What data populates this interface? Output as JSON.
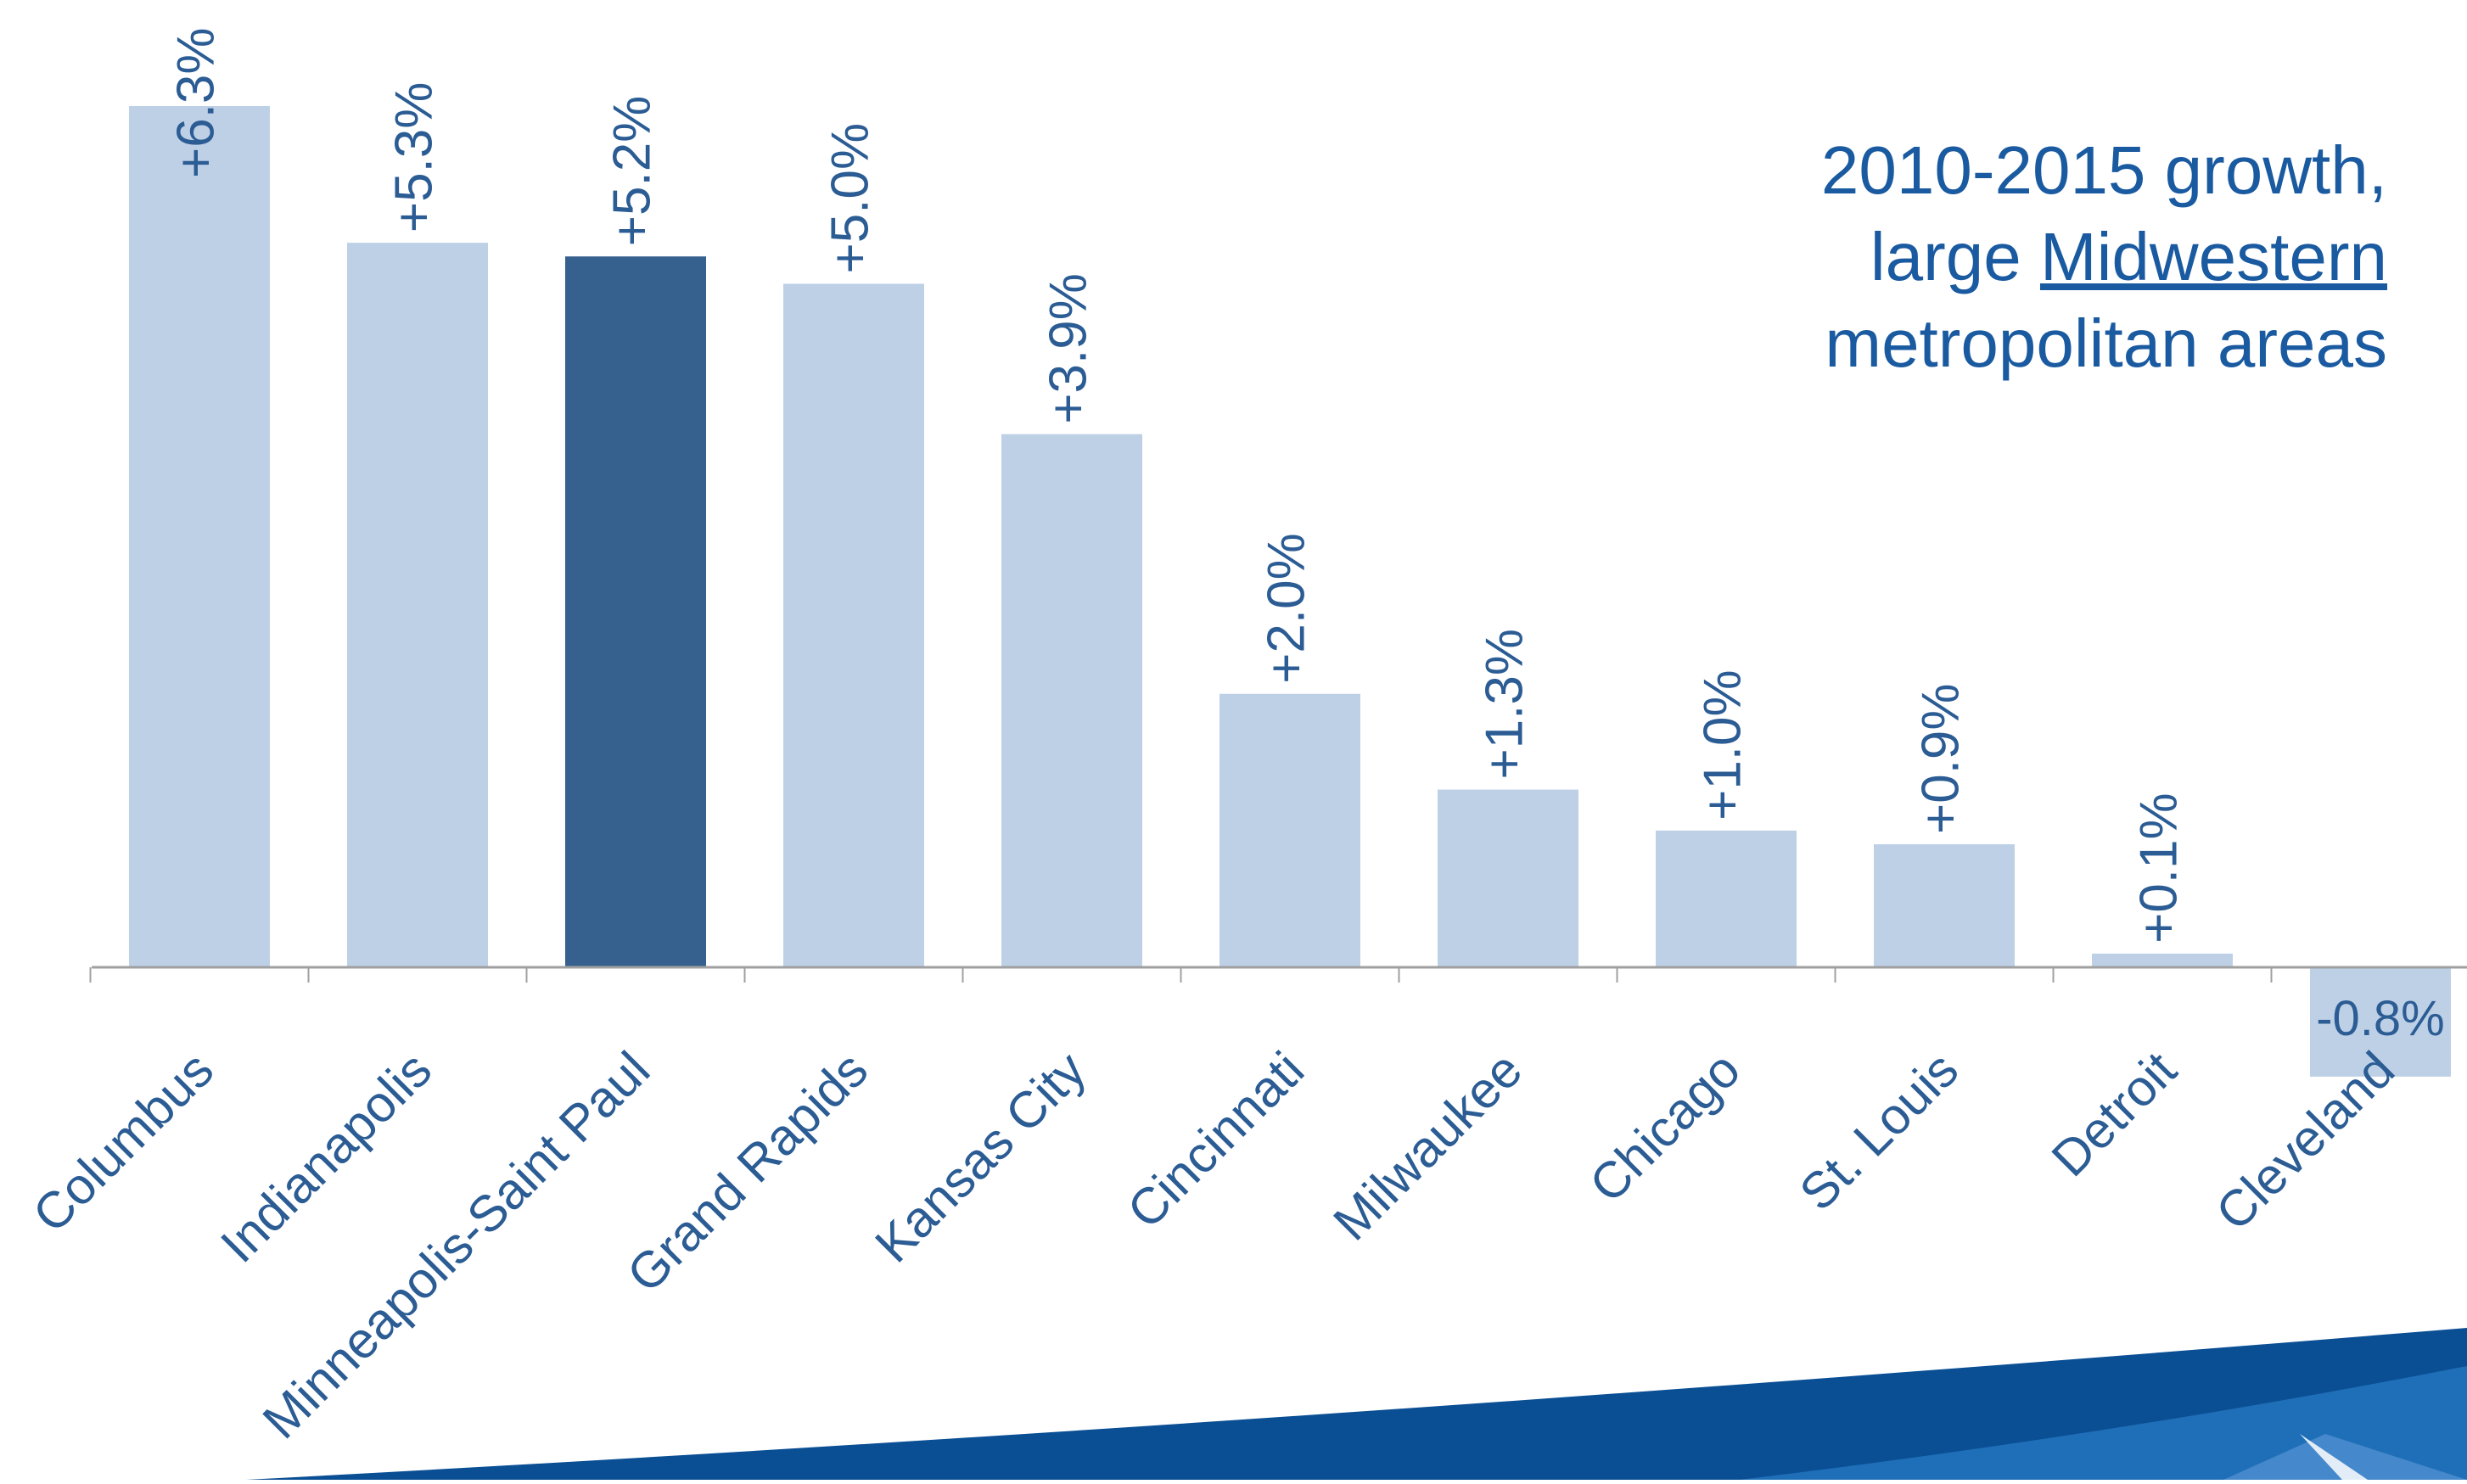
{
  "title": {
    "line1": "2010-2015 growth,",
    "line2_prefix": "large ",
    "line2_emphasis": "Midwestern",
    "line3": "metropolitan areas"
  },
  "colors": {
    "bar": "#bdd0e6",
    "highlight_bar": "#36618f",
    "label_text": "#2b5c94",
    "axis": "#a0a0a0",
    "title": "#1a5aa0",
    "swoosh_dark": "#0a4f94",
    "swoosh_mid": "#1f6fb8",
    "swoosh_light": "#4f8fcf"
  },
  "chart_data": {
    "type": "bar",
    "categories": [
      "Columbus",
      "Indianapolis",
      "Minneapolis-Saint Paul",
      "Grand Rapids",
      "Kansas City",
      "Cincinnati",
      "Milwaukee",
      "Chicago",
      "St. Louis",
      "Detroit",
      "Cleveland"
    ],
    "values": [
      6.3,
      5.3,
      5.2,
      5.0,
      3.9,
      2.0,
      1.3,
      1.0,
      0.9,
      0.1,
      -0.8
    ],
    "data_labels": [
      "+6.3%",
      "+5.3%",
      "+5.2%",
      "+5.0%",
      "+3.9%",
      "+2.0%",
      "+1.3%",
      "+1.0%",
      "+0.9%",
      "+0.1%",
      "-0.8%"
    ],
    "highlight_index": 2,
    "ylim": [
      -0.8,
      6.3
    ],
    "grid": false,
    "legend": "none",
    "xlabel": "",
    "ylabel": ""
  }
}
